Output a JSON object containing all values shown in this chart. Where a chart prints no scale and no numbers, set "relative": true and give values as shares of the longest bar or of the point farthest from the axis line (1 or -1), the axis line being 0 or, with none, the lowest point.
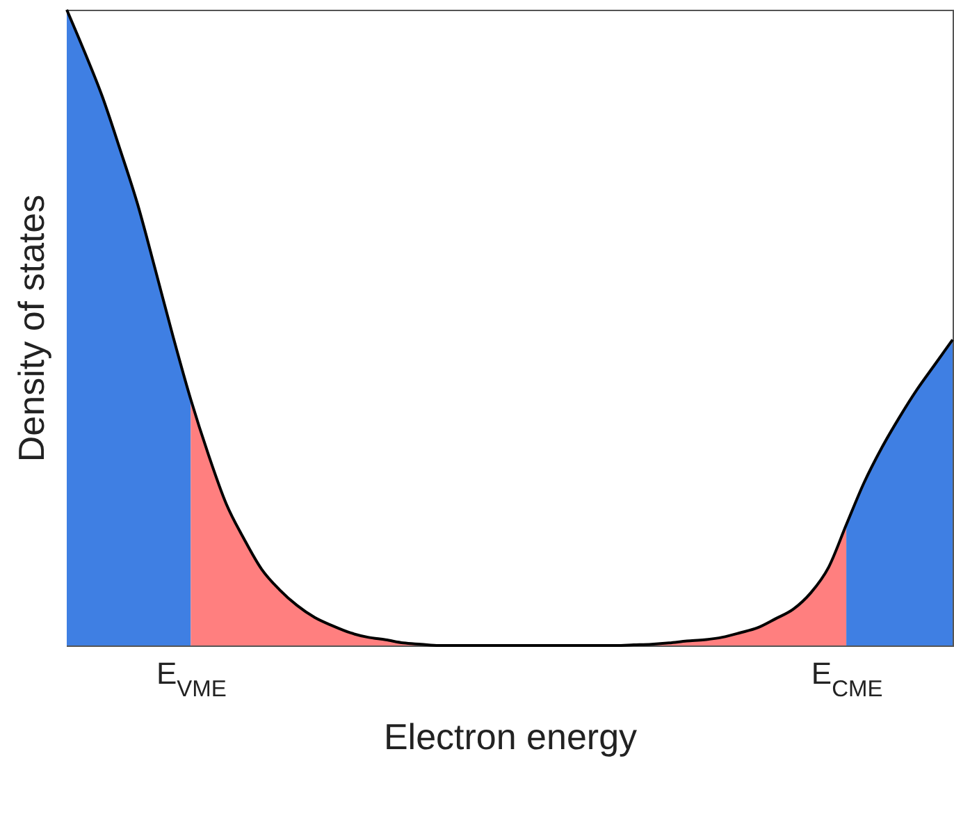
{
  "chart_data": {
    "type": "area",
    "relative": true,
    "xlabel": "Electron energy",
    "ylabel": "Density of states",
    "categories": [
      null,
      null,
      null,
      null,
      null,
      null,
      null,
      "E$_{VME}$",
      null,
      null,
      null,
      null,
      null,
      null,
      null,
      null,
      null,
      null,
      null,
      null,
      null,
      null,
      null,
      null,
      null,
      null,
      null,
      null,
      null,
      null,
      null,
      null,
      null,
      null,
      null,
      null,
      null,
      null,
      null,
      null,
      null,
      null,
      null,
      null,
      "E$_{CME}$",
      null,
      null,
      null,
      null,
      null,
      null
    ],
    "series": [
      {
        "color": "#3f7fe3",
        "values": [
          1.0,
          0.934,
          0.864,
          0.781,
          0.694,
          0.591,
          0.486,
          0.387,
          null,
          null,
          null,
          null,
          null,
          null,
          null,
          null,
          null,
          null,
          null,
          null,
          null,
          null,
          null,
          null,
          null,
          null,
          null,
          null,
          null,
          null,
          null,
          null,
          null,
          null,
          null,
          null,
          null,
          null,
          null,
          null,
          null,
          null,
          null,
          null,
          null,
          null,
          null,
          null,
          null,
          null,
          null
        ]
      },
      {
        "color": "#ff7f7f",
        "values": [
          null,
          null,
          null,
          null,
          null,
          null,
          null,
          0.387,
          0.3,
          0.223,
          0.168,
          0.12,
          0.088,
          0.063,
          0.044,
          0.031,
          0.02,
          0.013,
          0.009,
          0.004,
          0.002,
          0,
          0,
          0,
          0,
          0,
          0,
          0,
          0,
          0,
          0,
          0,
          0.001,
          0.002,
          0.004,
          0.007,
          0.009,
          0.013,
          0.02,
          0.028,
          0.042,
          0.057,
          0.083,
          0.123,
          0.19,
          null,
          null,
          null,
          null,
          null,
          null
        ]
      },
      {
        "color": "#3f7fe3",
        "values": [
          null,
          null,
          null,
          null,
          null,
          null,
          null,
          null,
          null,
          null,
          null,
          null,
          null,
          null,
          null,
          null,
          null,
          null,
          null,
          null,
          null,
          null,
          null,
          null,
          null,
          null,
          null,
          null,
          null,
          null,
          null,
          null,
          null,
          null,
          null,
          null,
          null,
          null,
          null,
          null,
          null,
          null,
          null,
          null,
          0.19,
          0.256,
          0.311,
          0.359,
          0.403,
          0.442,
          0.481
        ]
      },
      {
        "type": "line",
        "color": "#000000",
        "values": [
          1.0,
          0.934,
          0.864,
          0.781,
          0.694,
          0.591,
          0.486,
          0.387,
          0.3,
          0.223,
          0.168,
          0.12,
          0.088,
          0.063,
          0.044,
          0.031,
          0.02,
          0.013,
          0.009,
          0.004,
          0.002,
          0,
          0,
          0,
          0,
          0,
          0,
          0,
          0,
          0,
          0,
          0,
          0.001,
          0.002,
          0.004,
          0.007,
          0.009,
          0.013,
          0.02,
          0.028,
          0.042,
          0.057,
          0.083,
          0.123,
          0.19,
          0.256,
          0.311,
          0.359,
          0.403,
          0.442,
          0.481
        ]
      }
    ]
  }
}
